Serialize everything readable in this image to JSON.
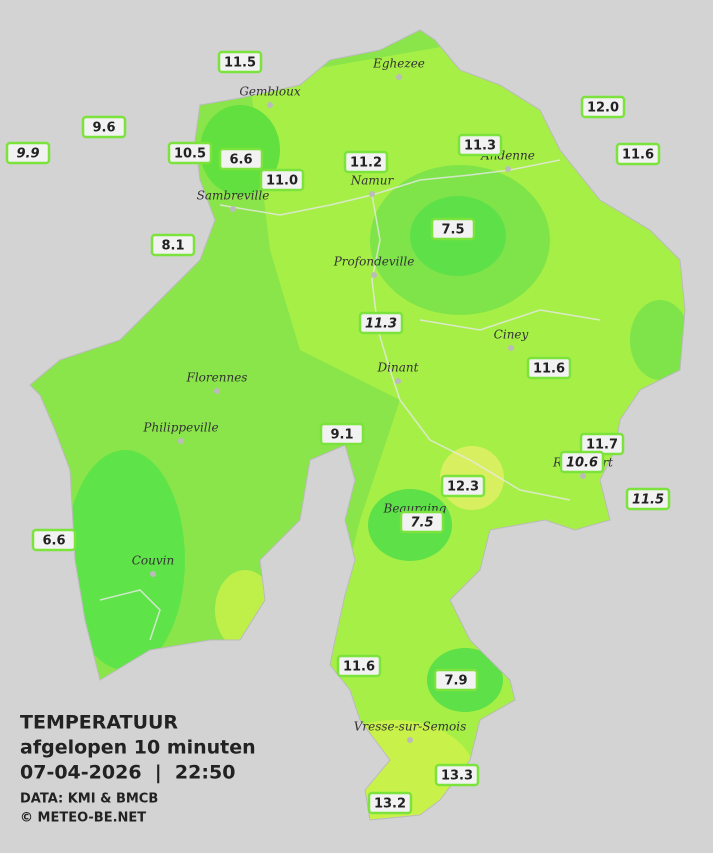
{
  "caption": {
    "title": "TEMPERATUUR",
    "subtitle": "afgelopen 10 minuten",
    "datetime": "07-04-2026  |  22:50",
    "source": "DATA: KMI & BMCB",
    "copyright": "© METEO-BE.NET"
  },
  "towns": [
    "Eghezee",
    "Gembloux",
    "Andenne",
    "Namur",
    "Sambreville",
    "Profondeville",
    "Ciney",
    "Dinant",
    "Florennes",
    "Philippeville",
    "Beauraing",
    "Rochefort",
    "Couvin",
    "Vresse-sur-Semois"
  ],
  "stations": [
    "11.5",
    "9.6",
    "9.9",
    "10.5",
    "6.6",
    "11.0",
    "11.2",
    "11.3",
    "12.0",
    "11.6",
    "8.1",
    "7.5",
    "11.3",
    "11.6",
    "9.1",
    "11.7",
    "10.6",
    "11.5",
    "12.3",
    "7.5",
    "6.6",
    "11.6",
    "7.9",
    "13.3",
    "13.2"
  ]
}
